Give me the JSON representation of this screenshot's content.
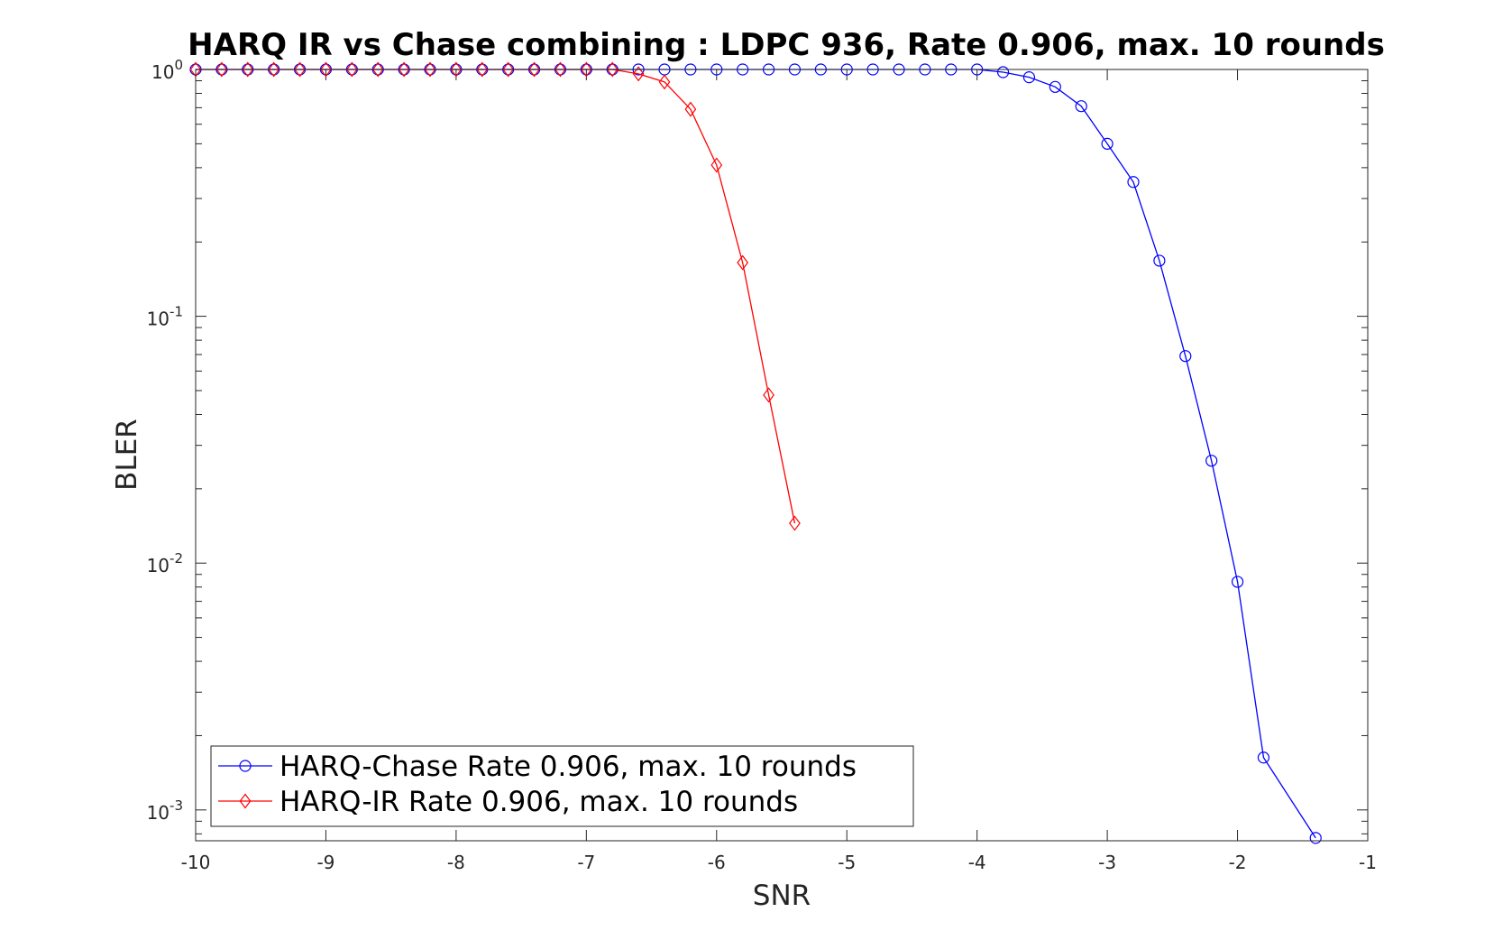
{
  "chart_data": {
    "type": "line",
    "title": "HARQ IR vs Chase combining : LDPC 936, Rate 0.906, max. 10 rounds",
    "xlabel": "SNR",
    "ylabel": "BLER",
    "xlim": [
      -10,
      -1
    ],
    "ylim": [
      0.00075,
      1
    ],
    "yscale": "log",
    "grid": false,
    "legend_position": "bottom-left",
    "x_ticks": [
      "-10",
      "-9",
      "-8",
      "-7",
      "-6",
      "-5",
      "-4",
      "-3",
      "-2",
      "-1"
    ],
    "y_ticks": [
      {
        "base": "10",
        "exp": "0",
        "value": 1
      },
      {
        "base": "10",
        "exp": "-1",
        "value": 0.1
      },
      {
        "base": "10",
        "exp": "-2",
        "value": 0.01
      },
      {
        "base": "10",
        "exp": "-3",
        "value": 0.001
      }
    ],
    "series": [
      {
        "name": "HARQ-Chase Rate 0.906, max. 10 rounds",
        "color": "#0000ff",
        "marker": "circle",
        "x": [
          -10,
          -9.8,
          -9.6,
          -9.4,
          -9.2,
          -9,
          -8.8,
          -8.6,
          -8.4,
          -8.2,
          -8,
          -7.8,
          -7.6,
          -7.4,
          -7.2,
          -7,
          -6.8,
          -6.6,
          -6.4,
          -6.2,
          -6,
          -5.8,
          -5.6,
          -5.4,
          -5.2,
          -5,
          -4.8,
          -4.6,
          -4.4,
          -4.2,
          -4,
          -3.8,
          -3.6,
          -3.4,
          -3.2,
          -3,
          -2.8,
          -2.6,
          -2.4,
          -2.2,
          -2,
          -1.8,
          -1.4
        ],
        "y": [
          1,
          1,
          1,
          1,
          1,
          1,
          1,
          1,
          1,
          1,
          1,
          1,
          1,
          1,
          1,
          1,
          1,
          1,
          1,
          1,
          1,
          1,
          1,
          1,
          1,
          1,
          1,
          1,
          1,
          1,
          1,
          0.975,
          0.93,
          0.85,
          0.71,
          0.5,
          0.35,
          0.168,
          0.069,
          0.026,
          0.0084,
          0.00163,
          0.00077
        ]
      },
      {
        "name": "HARQ-IR Rate 0.906, max. 10 rounds",
        "color": "#ff0000",
        "marker": "diamond",
        "x": [
          -10,
          -9.8,
          -9.6,
          -9.4,
          -9.2,
          -9,
          -8.8,
          -8.6,
          -8.4,
          -8.2,
          -8,
          -7.8,
          -7.6,
          -7.4,
          -7.2,
          -7,
          -6.8,
          -6.6,
          -6.4,
          -6.2,
          -6,
          -5.8,
          -5.6,
          -5.4
        ],
        "y": [
          1,
          1,
          1,
          1,
          1,
          1,
          1,
          1,
          1,
          1,
          1,
          1,
          1,
          1,
          1,
          1,
          1,
          0.96,
          0.89,
          0.69,
          0.41,
          0.165,
          0.048,
          0.0145
        ]
      }
    ]
  }
}
